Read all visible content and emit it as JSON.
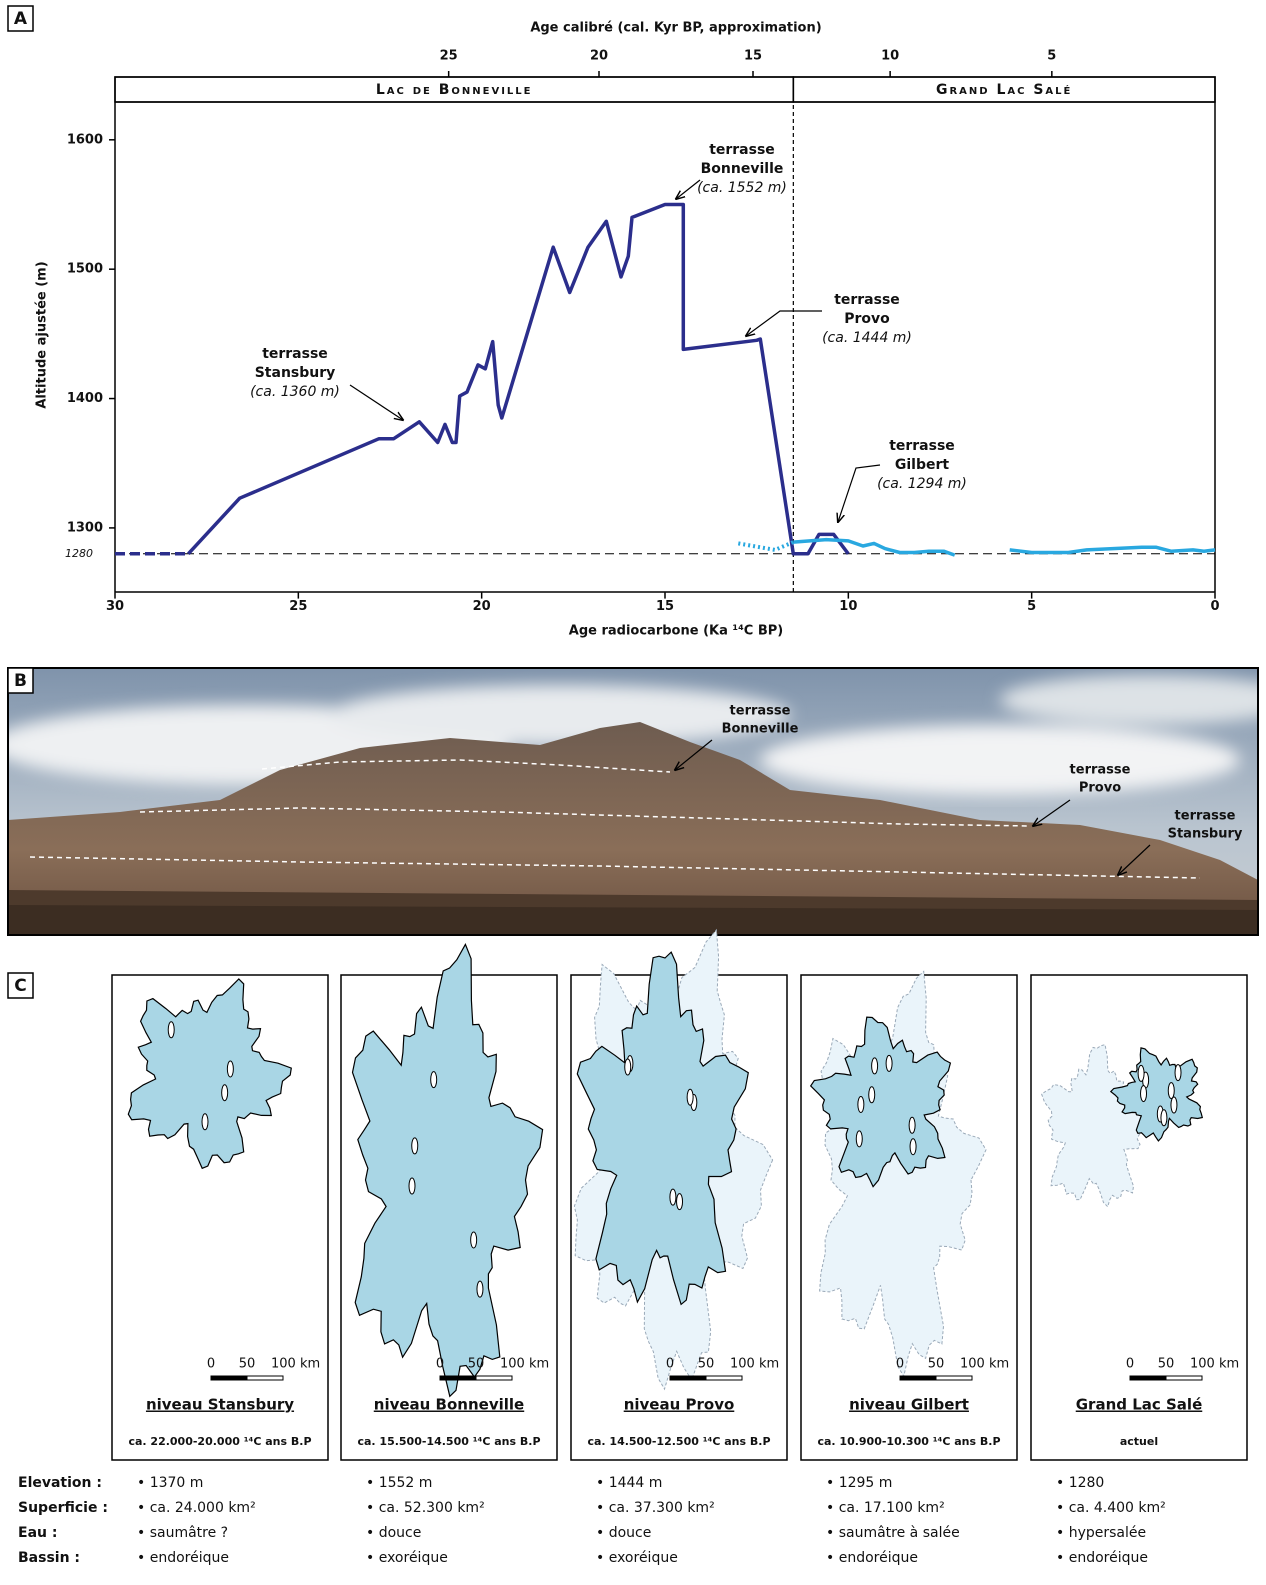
{
  "panel_labels": [
    "A",
    "B",
    "C"
  ],
  "chart_data": {
    "type": "line",
    "x2_label": "Age calibré (cal. Kyr BP, approximation)",
    "x_label": "Age radiocarbone (Ka ¹⁴C BP)",
    "y_label": "Altitude ajustée (m)",
    "xlim": [
      30,
      0
    ],
    "ylim": [
      1250,
      1630
    ],
    "xticks": [
      30,
      25,
      20,
      15,
      10,
      5,
      0
    ],
    "yticks": [
      1300,
      1400,
      1500,
      1600
    ],
    "x2ticks": [
      25,
      20,
      15,
      10,
      5
    ],
    "x2tick_positions": [
      20.9,
      16.8,
      12.6,
      8.86,
      4.45
    ],
    "reference_level": 1280,
    "boundary": 11.5,
    "periods": [
      {
        "name": "Lac de Bonneville",
        "range": [
          30,
          11.5
        ]
      },
      {
        "name": "Grand Lac Salé",
        "range": [
          11.5,
          0
        ]
      }
    ],
    "series": [
      {
        "color": "#2b2e8c",
        "style": "dashed",
        "x": [
          30,
          28
        ],
        "values": [
          1280,
          1280
        ]
      },
      {
        "color": "#2b2e8c",
        "style": "solid",
        "x": [
          28.0,
          26.6,
          22.8,
          22.4,
          21.7,
          21.2,
          21.0,
          20.8,
          20.7,
          20.6,
          20.4,
          20.1,
          19.9,
          19.7,
          19.55,
          19.45,
          18.05,
          17.6,
          17.1,
          16.6,
          16.2,
          16.0,
          15.9,
          15.0,
          14.5,
          14.5,
          12.5,
          12.4,
          11.5,
          11.1,
          10.8,
          10.4,
          10.0
        ],
        "values": [
          1280,
          1323,
          1369,
          1369,
          1382,
          1366,
          1380,
          1366,
          1366,
          1402,
          1405,
          1426,
          1423,
          1444,
          1395,
          1385,
          1517,
          1482,
          1517,
          1537,
          1494,
          1510,
          1540,
          1550,
          1550,
          1438,
          1445,
          1446,
          1280,
          1280,
          1295,
          1295,
          1280
        ]
      },
      {
        "color": "#29a8e0",
        "style": "dotted",
        "x": [
          13.0,
          12.4,
          12.0,
          11.5
        ],
        "values": [
          1288,
          1285,
          1283,
          1289
        ]
      },
      {
        "color": "#29a8e0",
        "style": "solid",
        "x": [
          11.5,
          10.6,
          10.0,
          9.6,
          9.3,
          9.0,
          8.6,
          8.2,
          7.8,
          7.4,
          7.1,
          6.0,
          5.6,
          5.0,
          4.0,
          3.5,
          2.0,
          1.6,
          1.2,
          0.6,
          0.3,
          0
        ],
        "values": [
          1289,
          1291,
          1290,
          1286,
          1288,
          1284,
          1281,
          1281,
          1282,
          1282,
          1279,
          null,
          1283,
          1281,
          1281,
          1283,
          1285,
          1285,
          1282,
          1283,
          1282,
          1283
        ]
      }
    ],
    "annotations": [
      {
        "lines": [
          "terrasse",
          "Bonneville"
        ],
        "note": "(ca. 1552 m)"
      },
      {
        "lines": [
          "terrasse",
          "Provo"
        ],
        "note": "(ca. 1444 m)"
      },
      {
        "lines": [
          "terrasse",
          "Gilbert"
        ],
        "note": "(ca. 1294 m)"
      },
      {
        "lines": [
          "terrasse",
          "Stansbury"
        ],
        "note": "(ca. 1360 m)"
      }
    ]
  },
  "photo": {
    "labels": [
      [
        "terrasse",
        "Bonneville"
      ],
      [
        "terrasse",
        "Provo"
      ],
      [
        "terrasse",
        "Stansbury"
      ]
    ]
  },
  "maps": {
    "scale_labels": [
      "0",
      "50",
      "100 km"
    ],
    "row_labels": [
      "Elevation :",
      "Superficie :",
      "Eau :",
      "Bassin :"
    ],
    "items": [
      {
        "title": "niveau Stansbury",
        "subtitle": "ca. 22.000-20.000 ¹⁴C ans B.P",
        "facts": [
          "• 1370 m",
          "• ca. 24.000 km²",
          "• saumâtre ?",
          "• endoréique"
        ]
      },
      {
        "title": "niveau Bonneville",
        "subtitle": "ca. 15.500-14.500 ¹⁴C ans B.P",
        "facts": [
          "• 1552 m",
          "• ca. 52.300 km²",
          "• douce",
          "• exoréique"
        ]
      },
      {
        "title": "niveau Provo",
        "subtitle": "ca. 14.500-12.500 ¹⁴C ans B.P",
        "facts": [
          "• 1444 m",
          "• ca. 37.300 km²",
          "• douce",
          "• exoréique"
        ]
      },
      {
        "title": "niveau Gilbert",
        "subtitle": "ca. 10.900-10.300 ¹⁴C ans B.P",
        "facts": [
          "• 1295 m",
          "• ca. 17.100 km²",
          "• saumâtre à salée",
          "• endoréique"
        ]
      },
      {
        "title": "Grand Lac Salé",
        "subtitle": "actuel",
        "facts": [
          "• 1280",
          "• ca. 4.400 km²",
          "• hypersalée",
          "• endoréique"
        ]
      }
    ]
  }
}
